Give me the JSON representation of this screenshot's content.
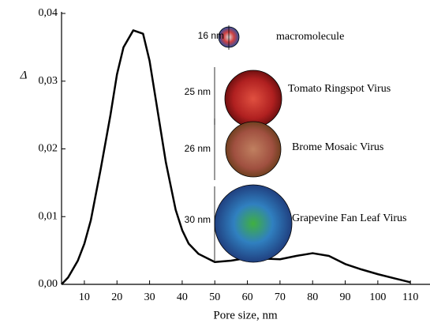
{
  "chart_data": {
    "type": "line",
    "x_label": "Pore size, nm",
    "y_label": "Δ",
    "x": [
      3,
      5,
      8,
      10,
      12,
      15,
      18,
      20,
      22,
      25,
      28,
      30,
      32,
      35,
      38,
      40,
      42,
      45,
      50,
      55,
      60,
      65,
      70,
      75,
      80,
      85,
      90,
      95,
      100,
      105,
      110
    ],
    "series": [
      {
        "name": "Δ",
        "color": "#000000",
        "values": [
          0,
          0.001,
          0.0035,
          0.006,
          0.0095,
          0.017,
          0.025,
          0.031,
          0.035,
          0.0375,
          0.037,
          0.033,
          0.027,
          0.018,
          0.011,
          0.008,
          0.006,
          0.0045,
          0.0033,
          0.0035,
          0.0039,
          0.0038,
          0.0037,
          0.0042,
          0.0046,
          0.0042,
          0.003,
          0.0022,
          0.0015,
          0.0009,
          0.0003
        ]
      }
    ],
    "xlim": [
      3,
      116
    ],
    "ylim": [
      0,
      0.04
    ],
    "xticks": [
      10,
      20,
      30,
      40,
      50,
      60,
      70,
      80,
      90,
      100,
      110
    ],
    "yticks": [
      {
        "value": 0,
        "label": "0,00"
      },
      {
        "value": 0.01,
        "label": "0,01"
      },
      {
        "value": 0.02,
        "label": "0,02"
      },
      {
        "value": 0.03,
        "label": "0,03"
      },
      {
        "value": 0.04,
        "label": "0,04"
      }
    ],
    "annotations": [
      {
        "size": "16 nm",
        "name": "macromolecule"
      },
      {
        "size": "25 nm",
        "name": "Tomato Ringspot Virus"
      },
      {
        "size": "26 nm",
        "name": "Brome Mosaic Virus"
      },
      {
        "size": "30 nm",
        "name": "Grapevine Fan Leaf Virus"
      }
    ]
  }
}
